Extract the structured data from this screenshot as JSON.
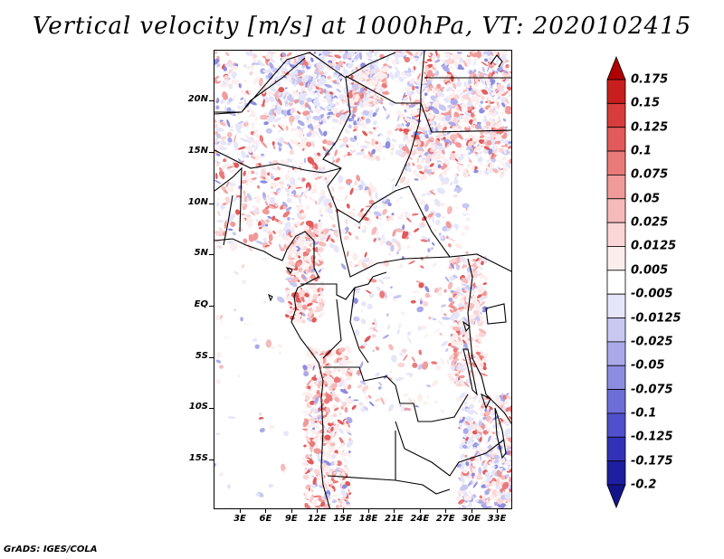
{
  "title": "Vertical velocity [m/s] at 1000hPa, VT: 2020102415",
  "footer": "GrADS: IGES/COLA",
  "map": {
    "lat_labels": [
      "20N",
      "15N",
      "10N",
      "5N",
      "EQ",
      "5S",
      "10S",
      "15S"
    ],
    "lon_labels": [
      "3E",
      "6E",
      "9E",
      "12E",
      "15E",
      "18E",
      "21E",
      "24E",
      "27E",
      "30E",
      "33E"
    ]
  },
  "colorbar": {
    "labels": [
      "0.175",
      "0.15",
      "0.125",
      "0.1",
      "0.075",
      "0.05",
      "0.025",
      "0.0125",
      "0.005",
      "-0.005",
      "-0.0125",
      "-0.025",
      "-0.05",
      "-0.075",
      "-0.1",
      "-0.125",
      "-0.175",
      "-0.2"
    ],
    "colors": [
      "#b00000",
      "#c81e1e",
      "#d93c3c",
      "#e25a5a",
      "#ea7a7a",
      "#f09a9a",
      "#f6baba",
      "#fad6d6",
      "#fdeeee",
      "#ffffff",
      "#e6e6fa",
      "#c8c8f2",
      "#aaaaea",
      "#8c8ce2",
      "#6e6ed8",
      "#5050cc",
      "#3232b8",
      "#1e1ea0",
      "#14148a"
    ]
  }
}
